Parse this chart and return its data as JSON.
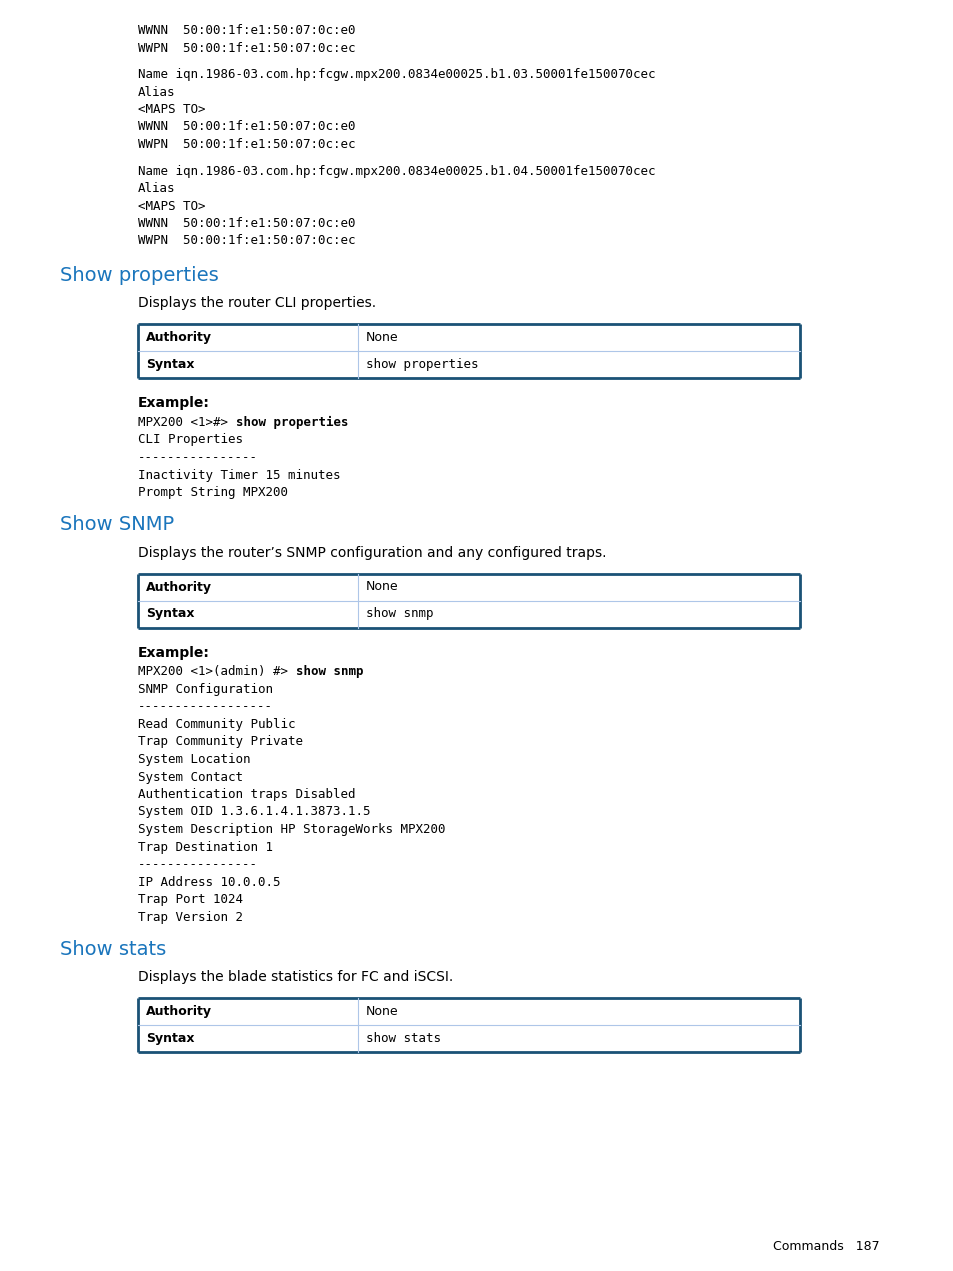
{
  "bg_color": "#ffffff",
  "text_color": "#000000",
  "heading_color": "#1a75bc",
  "table_border_top_color": "#1a5276",
  "table_border_inner_color": "#aec6e8",
  "table_border_bottom_color": "#1a5276",
  "mono_font": "DejaVu Sans Mono",
  "sans_font": "DejaVu Sans",
  "page_number_text": "Commands   187",
  "top_code_lines": [
    "WWNN  50:00:1f:e1:50:07:0c:e0",
    "WWPN  50:00:1f:e1:50:07:0c:ec",
    "",
    "Name iqn.1986-03.com.hp:fcgw.mpx200.0834e00025.b1.03.50001fe150070cec",
    "Alias",
    "<MAPS TO>",
    "WWNN  50:00:1f:e1:50:07:0c:e0",
    "WWPN  50:00:1f:e1:50:07:0c:ec",
    "",
    "Name iqn.1986-03.com.hp:fcgw.mpx200.0834e00025.b1.04.50001fe150070cec",
    "Alias",
    "<MAPS TO>",
    "WWNN  50:00:1f:e1:50:07:0c:e0",
    "WWPN  50:00:1f:e1:50:07:0c:ec"
  ],
  "section1_heading": "Show properties",
  "section1_desc": "Displays the router CLI properties.",
  "section1_table": [
    [
      "Authority",
      "None"
    ],
    [
      "Syntax",
      "show properties"
    ]
  ],
  "section1_example_label": "Example:",
  "section1_example_prefix": "MPX200 <1>#> ",
  "section1_example_bold": "show properties",
  "section1_example_rest": [
    "CLI Properties",
    "----------------",
    "Inactivity Timer 15 minutes",
    "Prompt String MPX200"
  ],
  "section2_heading": "Show SNMP",
  "section2_desc": "Displays the router’s SNMP configuration and any configured traps.",
  "section2_table": [
    [
      "Authority",
      "None"
    ],
    [
      "Syntax",
      "show snmp"
    ]
  ],
  "section2_example_label": "Example:",
  "section2_example_prefix": "MPX200 <1>(admin) #> ",
  "section2_example_bold": "show snmp",
  "section2_example_rest": [
    "SNMP Configuration",
    "------------------",
    "Read Community Public",
    "Trap Community Private",
    "System Location",
    "System Contact",
    "Authentication traps Disabled",
    "System OID 1.3.6.1.4.1.3873.1.5",
    "System Description HP StorageWorks MPX200",
    "Trap Destination 1",
    "----------------",
    "IP Address 10.0.0.5",
    "Trap Port 1024",
    "Trap Version 2"
  ],
  "section3_heading": "Show stats",
  "section3_desc": "Displays the blade statistics for FC and iSCSI.",
  "section3_table": [
    [
      "Authority",
      "None"
    ],
    [
      "Syntax",
      "show stats"
    ]
  ]
}
